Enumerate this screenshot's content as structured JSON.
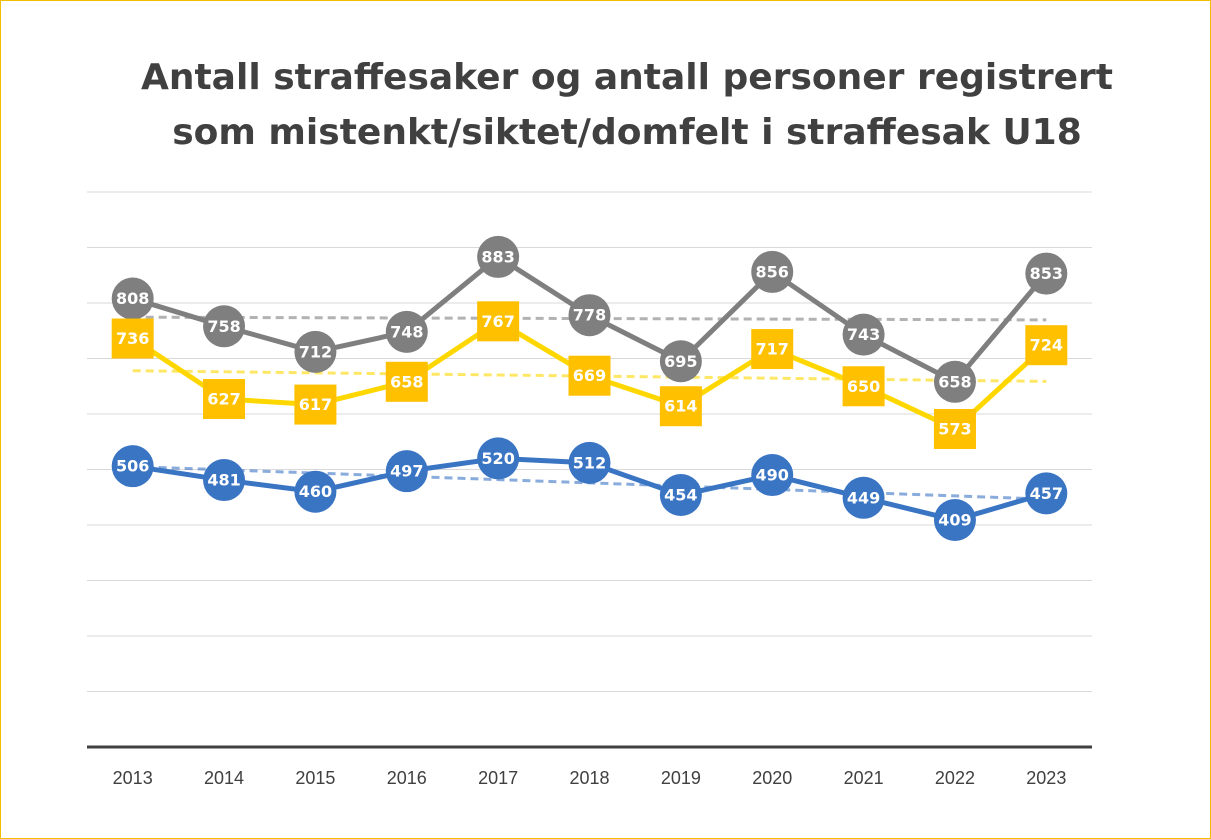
{
  "chart_data": {
    "type": "line",
    "title": [
      "Antall straffesaker og antall personer registrert",
      "som mistenkt/siktet/domfelt i straffesak U18"
    ],
    "categories": [
      "2013",
      "2014",
      "2015",
      "2016",
      "2017",
      "2018",
      "2019",
      "2020",
      "2021",
      "2022",
      "2023"
    ],
    "series": [
      {
        "color": "#7f7f7f",
        "marker": "circle",
        "values": [
          808,
          758,
          712,
          748,
          883,
          778,
          695,
          856,
          743,
          658,
          853
        ]
      },
      {
        "color": "#ffd700",
        "marker_color": "#ffc000",
        "marker": "square",
        "values": [
          736,
          627,
          617,
          658,
          767,
          669,
          614,
          717,
          650,
          573,
          724
        ]
      },
      {
        "color": "#3a75c4",
        "marker": "circle",
        "values": [
          506,
          481,
          460,
          497,
          520,
          512,
          454,
          490,
          449,
          409,
          457
        ]
      }
    ],
    "ylim": [
      0,
      1000
    ],
    "yticks": [
      0,
      100,
      200,
      300,
      400,
      500,
      600,
      700,
      800,
      900,
      1000
    ],
    "grid": true,
    "trendline": true
  }
}
